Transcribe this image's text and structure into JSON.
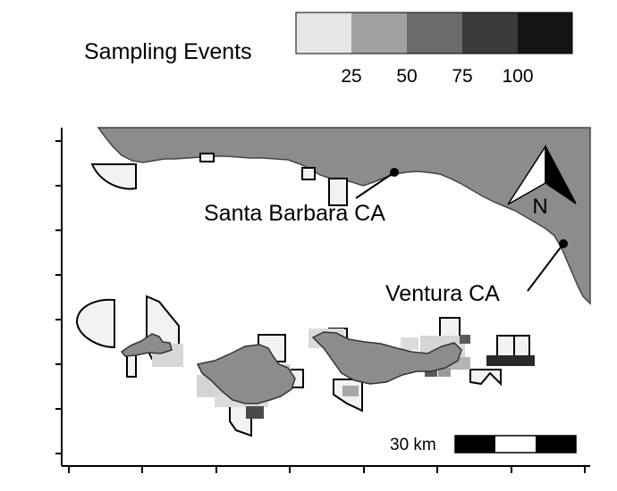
{
  "legend": {
    "title": "Sampling Events",
    "tick_labels": [
      "25",
      "50",
      "75",
      "100"
    ],
    "bins": [
      {
        "color": "#e6e6e6"
      },
      {
        "color": "#a0a0a0"
      },
      {
        "color": "#6b6b6b"
      },
      {
        "color": "#3a3a3a"
      },
      {
        "color": "#141414"
      }
    ]
  },
  "places": [
    {
      "id": "santa-barbara",
      "label": "Santa Barbara CA"
    },
    {
      "id": "ventura",
      "label": "Ventura CA"
    }
  ],
  "north_arrow": {
    "label": "N"
  },
  "scale_bar": {
    "label": "30 km"
  },
  "colors": {
    "land": "#8c8c8c",
    "zone_fill": "#f2f2f2",
    "outline": "#000000"
  }
}
